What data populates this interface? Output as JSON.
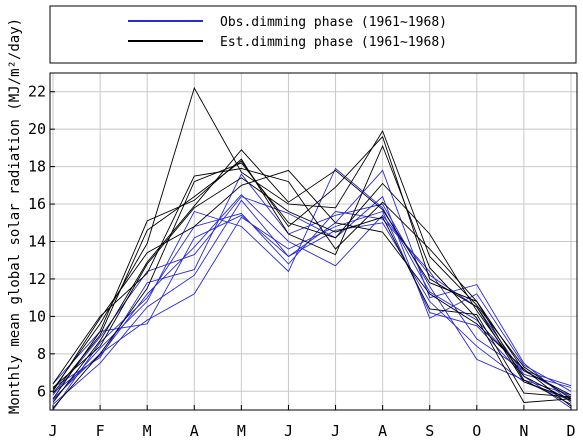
{
  "chart_data": {
    "type": "line",
    "ylabel": "Monthly mean global solar radiation (MJ/m²/day)",
    "xlabel": "",
    "categories": [
      "J",
      "F",
      "M",
      "A",
      "M",
      "J",
      "J",
      "A",
      "S",
      "O",
      "N",
      "D"
    ],
    "ylim": [
      5,
      23
    ],
    "yticks": [
      6,
      8,
      10,
      12,
      14,
      16,
      18,
      20,
      22
    ],
    "grid": true,
    "legend": {
      "placement": "top",
      "entries": [
        {
          "name": "Obs.dimming phase (1961∼1968)",
          "color": "#2929d6"
        },
        {
          "name": "Est.dimming phase (1961∼1968)",
          "color": "#000000"
        }
      ]
    },
    "series": [
      {
        "group": "obs",
        "color": "#2929d6",
        "values": [
          5.3,
          7.5,
          10.5,
          12.2,
          16.2,
          13.2,
          15.0,
          17.8,
          11.0,
          11.7,
          7.5,
          5.4
        ]
      },
      {
        "group": "obs",
        "color": "#2929d6",
        "values": [
          5.6,
          8.0,
          9.8,
          11.2,
          15.3,
          13.6,
          14.8,
          15.6,
          10.2,
          9.5,
          6.8,
          5.1
        ]
      },
      {
        "group": "obs",
        "color": "#2929d6",
        "values": [
          6.2,
          7.8,
          11.8,
          12.5,
          17.6,
          14.4,
          15.4,
          16.0,
          11.6,
          7.7,
          6.6,
          5.8
        ]
      },
      {
        "group": "obs",
        "color": "#2929d6",
        "values": [
          5.0,
          8.6,
          11.0,
          14.8,
          15.5,
          12.8,
          15.6,
          15.2,
          12.4,
          8.8,
          7.1,
          6.3
        ]
      },
      {
        "group": "obs",
        "color": "#2929d6",
        "values": [
          5.8,
          8.9,
          12.4,
          13.3,
          16.4,
          15.5,
          14.2,
          16.4,
          9.9,
          11.2,
          7.4,
          6.0
        ]
      },
      {
        "group": "obs",
        "color": "#2929d6",
        "values": [
          6.4,
          9.2,
          9.6,
          14.2,
          15.4,
          13.2,
          14.6,
          15.0,
          10.8,
          8.4,
          6.5,
          5.5
        ]
      },
      {
        "group": "obs",
        "color": "#2929d6",
        "values": [
          5.5,
          8.3,
          10.8,
          15.6,
          14.8,
          12.4,
          17.9,
          15.8,
          11.3,
          9.8,
          7.1,
          5.7
        ]
      },
      {
        "group": "obs",
        "color": "#2929d6",
        "values": [
          5.9,
          7.9,
          11.2,
          13.7,
          16.5,
          14.0,
          12.7,
          15.4,
          12.2,
          10.5,
          6.9,
          6.2
        ]
      },
      {
        "group": "est",
        "color": "#000000",
        "values": [
          6.1,
          9.6,
          13.9,
          22.2,
          17.7,
          16.0,
          15.8,
          19.9,
          13.2,
          10.6,
          7.3,
          5.6
        ]
      },
      {
        "group": "est",
        "color": "#000000",
        "values": [
          5.6,
          9.2,
          15.1,
          16.2,
          18.4,
          14.4,
          13.3,
          19.1,
          12.6,
          9.9,
          5.4,
          5.6
        ]
      },
      {
        "group": "est",
        "color": "#000000",
        "values": [
          6.4,
          10.0,
          12.3,
          17.5,
          17.9,
          17.2,
          13.6,
          16.1,
          13.6,
          10.8,
          6.6,
          5.3
        ]
      },
      {
        "group": "est",
        "color": "#000000",
        "values": [
          5.1,
          8.0,
          11.5,
          17.2,
          18.2,
          15.0,
          14.2,
          17.1,
          14.4,
          10.3,
          6.8,
          5.5
        ]
      },
      {
        "group": "est",
        "color": "#000000",
        "values": [
          5.4,
          8.7,
          12.9,
          15.9,
          18.9,
          16.1,
          17.8,
          15.7,
          11.8,
          10.8,
          7.1,
          5.8
        ]
      },
      {
        "group": "est",
        "color": "#000000",
        "values": [
          6.0,
          9.9,
          13.4,
          14.8,
          17.0,
          17.8,
          15.0,
          14.5,
          11.2,
          9.6,
          7.2,
          5.2
        ]
      },
      {
        "group": "est",
        "color": "#000000",
        "values": [
          5.9,
          9.0,
          14.6,
          16.4,
          18.3,
          14.8,
          16.9,
          19.6,
          12.0,
          10.5,
          6.5,
          5.6
        ]
      },
      {
        "group": "est",
        "color": "#000000",
        "values": [
          6.2,
          8.4,
          12.8,
          15.8,
          17.4,
          15.6,
          14.5,
          15.3,
          10.4,
          10.1,
          5.9,
          5.7
        ]
      }
    ]
  }
}
